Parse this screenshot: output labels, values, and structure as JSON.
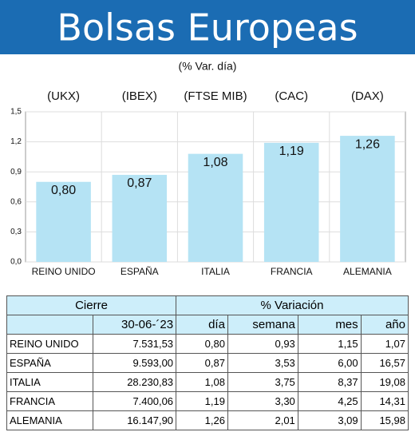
{
  "chart_data": {
    "type": "bar",
    "title": "Bolsas Europeas",
    "subtitle": "(% Var. día)",
    "codes": [
      "(UKX)",
      "(IBEX)",
      "(FTSE MIB)",
      "(CAC)",
      "(DAX)"
    ],
    "categories": [
      "REINO UNIDO",
      "ESPAÑA",
      "ITALIA",
      "FRANCIA",
      "ALEMANIA"
    ],
    "values": [
      0.8,
      0.87,
      1.08,
      1.19,
      1.26
    ],
    "value_labels": [
      "0,80",
      "0,87",
      "1,08",
      "1,19",
      "1,26"
    ],
    "color": "#b5e3f4",
    "ylim": [
      0,
      1.5
    ],
    "yticks": [
      {
        "value": 0,
        "label": "0,0"
      },
      {
        "value": 0.3,
        "label": "0,3"
      },
      {
        "value": 0.6,
        "label": "0,6"
      },
      {
        "value": 0.9,
        "label": "0,9"
      },
      {
        "value": 1.2,
        "label": "1,2"
      },
      {
        "value": 1.5,
        "label": "1,5"
      }
    ],
    "grid": true
  },
  "table": {
    "header": [
      [
        "Cierre",
        "% Variación"
      ],
      [
        "30-06-´23",
        "día",
        "semana",
        "mes",
        "año"
      ]
    ],
    "rows": [
      [
        "REINO UNIDO",
        "7.531,53",
        "0,80",
        "0,93",
        "1,15",
        "1,07"
      ],
      [
        "ESPAÑA",
        "9.593,00",
        "0,87",
        "3,53",
        "6,00",
        "16,57"
      ],
      [
        "ITALIA",
        "28.230,83",
        "1,08",
        "3,75",
        "8,37",
        "19,08"
      ],
      [
        "FRANCIA",
        "7.400,06",
        "1,19",
        "3,30",
        "4,25",
        "14,31"
      ],
      [
        "ALEMANIA",
        "16.147,90",
        "1,26",
        "2,01",
        "3,09",
        "15,98"
      ]
    ]
  }
}
